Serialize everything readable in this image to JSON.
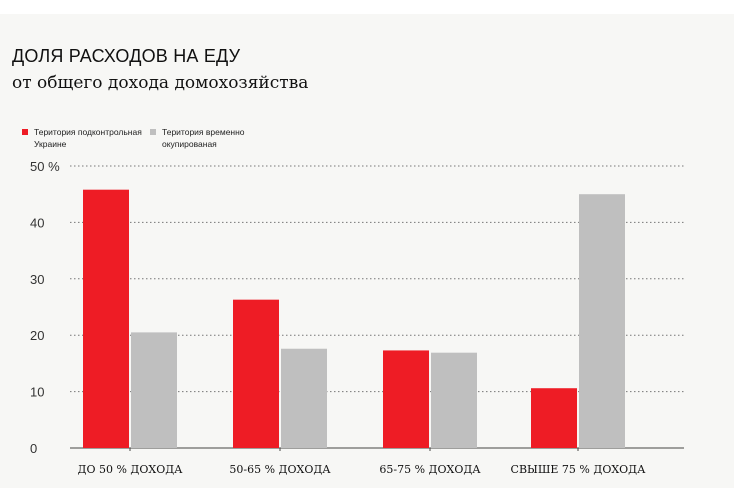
{
  "title": "ДОЛЯ РАСХОДОВ НА ЕДУ",
  "subtitle": "от общего дохода домохозяйства",
  "legend": [
    {
      "label": "Територия подконтрольная Украине",
      "color": "#ee1c25"
    },
    {
      "label": "Територия временно окупированая",
      "color": "#bfbfbf"
    }
  ],
  "chart_data": {
    "type": "bar",
    "categories": [
      "ДО 50 % ДОХОДА",
      "50-65 % ДОХОДА",
      "65-75 % ДОХОДА",
      "СВЫШЕ 75 % ДОХОДА"
    ],
    "series": [
      {
        "name": "Територия подконтрольная Украине",
        "values": [
          45.8,
          26.3,
          17.3,
          10.6
        ],
        "color": "#ee1c25"
      },
      {
        "name": "Територия временно окупированая",
        "values": [
          20.5,
          17.6,
          16.9,
          45.0
        ],
        "color": "#bfbfbf"
      }
    ],
    "yticks": [
      "0",
      "10",
      "20",
      "30",
      "40",
      "50 %"
    ],
    "ylim": [
      0,
      50
    ],
    "grid": "dotted horizontal",
    "legend_position": "top-left"
  }
}
